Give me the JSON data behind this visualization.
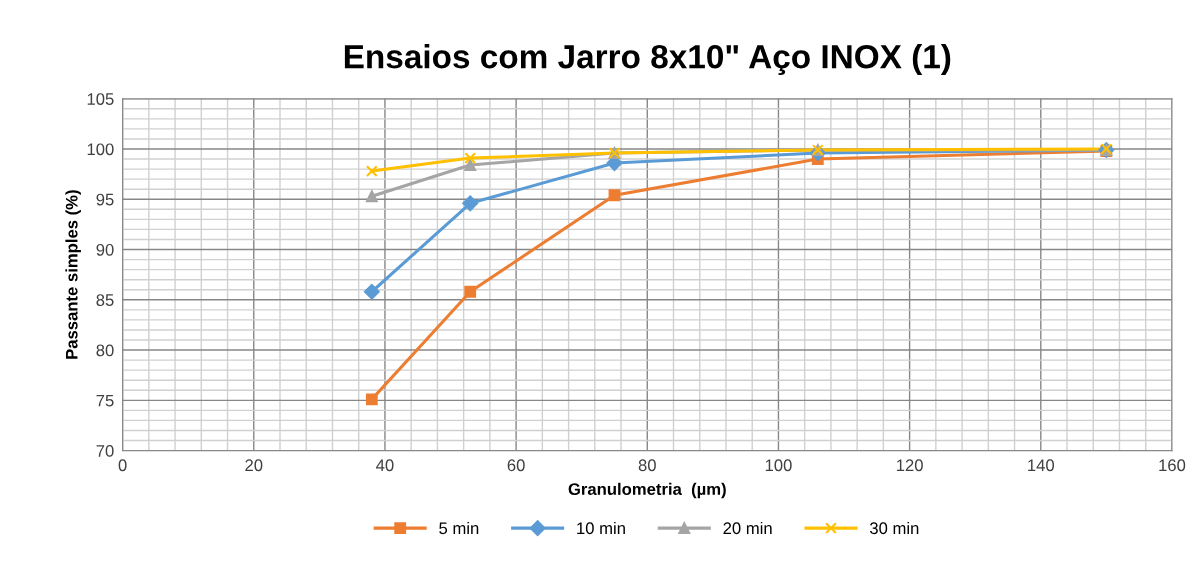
{
  "chart_data": {
    "type": "line",
    "title": "Ensaios com Jarro 8x10\" Aço INOX (1)",
    "xlabel": "Granulometria  (µm)",
    "ylabel": "Passante simples (%)",
    "x": [
      38,
      53,
      75,
      106,
      150
    ],
    "series": [
      {
        "name": "5 min",
        "color": "#ed7d31",
        "marker": "square",
        "values": [
          75.1,
          85.8,
          95.4,
          99.0,
          99.8
        ]
      },
      {
        "name": "10 min",
        "color": "#5b9bd5",
        "marker": "diamond",
        "values": [
          85.8,
          94.6,
          98.6,
          99.6,
          99.9
        ]
      },
      {
        "name": "20 min",
        "color": "#a5a5a5",
        "marker": "triangle",
        "values": [
          95.3,
          98.4,
          99.6,
          99.9,
          99.9
        ]
      },
      {
        "name": "30 min",
        "color": "#ffc000",
        "marker": "cross",
        "values": [
          97.8,
          99.1,
          99.6,
          99.9,
          100.0
        ]
      }
    ],
    "xlim": [
      0,
      160
    ],
    "xticks": [
      0,
      20,
      40,
      60,
      80,
      100,
      120,
      140,
      160
    ],
    "ylim": [
      70,
      105
    ],
    "yticks": [
      70,
      75,
      80,
      85,
      90,
      95,
      100,
      105
    ],
    "grid": true,
    "legend": "bottom"
  }
}
